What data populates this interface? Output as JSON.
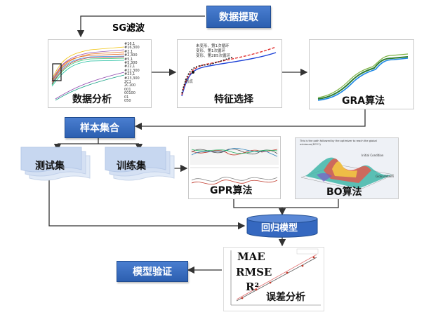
{
  "nodes": {
    "data_extract": "数据提取",
    "sg_filter": "SG滤波",
    "data_analysis": "数据分析",
    "feature_select": "特征选择",
    "gra": "GRA算法",
    "sample_set": "样本集合",
    "test_set": "测试集",
    "train_set": "训练集",
    "gpr": "GPR算法",
    "bo": "BO算法",
    "regression_model": "回归模型",
    "model_validation": "模型验证",
    "error_analysis": "误差分析"
  },
  "metrics": [
    "MAE",
    "RMSE",
    "R²"
  ],
  "data_analysis_legend": [
    "#16,1",
    "#16,300",
    "#2,1",
    "#2,300",
    "#5,1",
    "#5,300",
    "#22,1",
    "#22,300",
    "#23,1",
    "#23,300",
    "2C1",
    "2C100",
    "001",
    "00100",
    "01",
    "050"
  ],
  "feature_legend": [
    "未变形、第1次循环",
    "变形、第1次循环",
    "变形、第285次循环"
  ],
  "feature_annotation": "拐点",
  "bo_title": "This is the path followed by the optimizer to reach the global minimum(1E***)",
  "bo_annotations": [
    "Initial Condition",
    "Global Minim"
  ],
  "colors": {
    "accent_blue": "#2c5fb0",
    "arrow": "#333333"
  }
}
